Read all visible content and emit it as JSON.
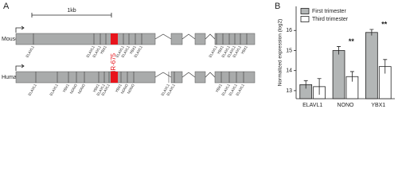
{
  "panel_a": {
    "label": "A",
    "scale": "1kb",
    "mirna": "miR-675",
    "species": [
      {
        "name": "Mouse",
        "sites": [
          "ELAVL1",
          "ELAVL1",
          "ELAVL1",
          "YBX1",
          "ELAVL1",
          "ELAVL1",
          "YBX1",
          "ELAVL1",
          "ELAVL1",
          "YBX1",
          "ELAVL1",
          "ELAVL1",
          "ELAVL1",
          "YBX1"
        ]
      },
      {
        "name": "Human",
        "sites": [
          "ELAVL1",
          "ELAVL1",
          "YBX1",
          "NONO",
          "NONO",
          "YBX1",
          "ELAVL1",
          "ELAVL1",
          "YBX1",
          "NONO",
          "NONO",
          "ELAVL1",
          "ELAVL1",
          "YBX1",
          "ELAVL1",
          "ELAVL1",
          "ELAVL1"
        ]
      }
    ]
  },
  "chart_data": {
    "type": "bar",
    "panel_label": "B",
    "ylabel": "Normalized expression (log2)",
    "categories": [
      "ELAVL1",
      "NONO",
      "YBX1"
    ],
    "series": [
      {
        "name": "First trimester",
        "color": "#b3b6b6",
        "values": [
          13.3,
          15.0,
          15.9
        ],
        "errors": [
          0.2,
          0.2,
          0.15
        ]
      },
      {
        "name": "Third trimester",
        "color": "#ffffff",
        "values": [
          13.2,
          13.7,
          14.2
        ],
        "errors": [
          0.4,
          0.25,
          0.35
        ]
      }
    ],
    "ylim": [
      12.6,
      17.2
    ],
    "yticks": [
      13,
      14,
      15,
      16
    ],
    "annotations": [
      {
        "text": "**",
        "category": "NONO"
      },
      {
        "text": "**",
        "category": "YBX1"
      }
    ]
  }
}
